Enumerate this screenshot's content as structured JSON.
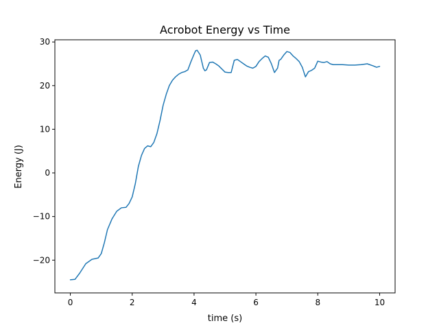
{
  "chart_data": {
    "type": "line",
    "title": "Acrobot Energy vs Time",
    "xlabel": "time (s)",
    "ylabel": "Energy (J)",
    "xlim": [
      -0.5,
      10.5
    ],
    "ylim": [
      -27.5,
      30.5
    ],
    "xticks": [
      0,
      2,
      4,
      6,
      8,
      10
    ],
    "yticks": [
      -20,
      -10,
      0,
      10,
      20,
      30
    ],
    "xtick_labels": [
      "0",
      "2",
      "4",
      "6",
      "8",
      "10"
    ],
    "ytick_labels": [
      "−20",
      "−10",
      "0",
      "10",
      "20",
      "30"
    ],
    "grid": false,
    "legend": false,
    "line_color": "#1f77b4",
    "series": [
      {
        "x": [
          0.0,
          0.15,
          0.3,
          0.5,
          0.7,
          0.9,
          1.0,
          1.1,
          1.2,
          1.35,
          1.5,
          1.65,
          1.8,
          1.9,
          2.0,
          2.1,
          2.2,
          2.3,
          2.4,
          2.5,
          2.6,
          2.7,
          2.8,
          2.9,
          3.0,
          3.1,
          3.2,
          3.3,
          3.4,
          3.5,
          3.6,
          3.7,
          3.8,
          3.9,
          4.0,
          4.05,
          4.1,
          4.2,
          4.3,
          4.35,
          4.4,
          4.5,
          4.6,
          4.7,
          4.8,
          5.0,
          5.1,
          5.2,
          5.3,
          5.4,
          5.5,
          5.6,
          5.7,
          5.8,
          5.9,
          6.0,
          6.1,
          6.2,
          6.3,
          6.4,
          6.5,
          6.6,
          6.7,
          6.75,
          6.8,
          6.9,
          7.0,
          7.1,
          7.2,
          7.3,
          7.4,
          7.5,
          7.6,
          7.7,
          7.8,
          7.9,
          8.0,
          8.1,
          8.2,
          8.3,
          8.4,
          8.5,
          8.6,
          8.8,
          9.0,
          9.2,
          9.4,
          9.6,
          9.8,
          9.9,
          10.0
        ],
        "y": [
          -24.5,
          -24.4,
          -23.0,
          -20.8,
          -19.8,
          -19.5,
          -18.5,
          -16.0,
          -13.0,
          -10.5,
          -8.8,
          -8.0,
          -7.9,
          -7.0,
          -5.5,
          -2.5,
          1.5,
          4.0,
          5.6,
          6.2,
          6.0,
          7.0,
          9.0,
          12.0,
          15.5,
          18.0,
          20.0,
          21.2,
          22.0,
          22.6,
          23.0,
          23.2,
          23.6,
          25.5,
          27.2,
          28.0,
          28.1,
          27.0,
          24.0,
          23.4,
          23.6,
          25.3,
          25.4,
          25.0,
          24.5,
          23.1,
          23.0,
          23.0,
          25.8,
          26.0,
          25.5,
          25.0,
          24.5,
          24.2,
          24.0,
          24.4,
          25.5,
          26.2,
          26.8,
          26.5,
          25.0,
          23.0,
          24.0,
          25.8,
          26.0,
          27.0,
          27.8,
          27.6,
          26.8,
          26.2,
          25.5,
          24.2,
          22.0,
          23.2,
          23.5,
          24.0,
          25.6,
          25.4,
          25.3,
          25.5,
          25.0,
          24.8,
          24.8,
          24.8,
          24.7,
          24.7,
          24.8,
          25.0,
          24.5,
          24.2,
          24.4
        ]
      }
    ]
  }
}
